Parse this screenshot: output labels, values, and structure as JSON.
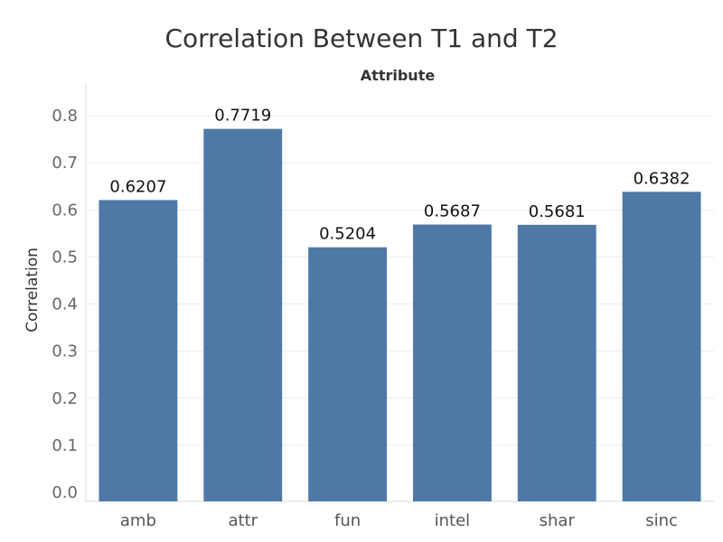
{
  "chart_data": {
    "type": "bar",
    "title": "Correlation Between T1 and T2",
    "column_header": "Attribute",
    "xlabel": "",
    "ylabel": "Correlation",
    "categories": [
      "amb",
      "attr",
      "fun",
      "intel",
      "shar",
      "sinc"
    ],
    "values": [
      0.6207,
      0.7719,
      0.5204,
      0.5687,
      0.5681,
      0.6382
    ],
    "data_labels": [
      "0.6207",
      "0.7719",
      "0.5204",
      "0.5687",
      "0.5681",
      "0.6382"
    ],
    "yticks": [
      "0.0",
      "0.1",
      "0.2",
      "0.3",
      "0.4",
      "0.5",
      "0.6",
      "0.7",
      "0.8"
    ],
    "ylim": [
      0,
      0.8
    ],
    "grid": true,
    "bar_color": "#4e79a7"
  }
}
